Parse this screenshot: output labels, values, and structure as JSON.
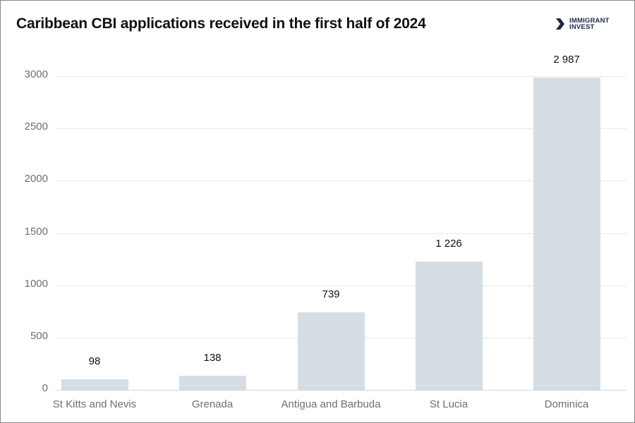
{
  "header": {
    "title": "Caribbean CBI applications received in the first half of 2024",
    "logo_line1": "IMMIGRANT",
    "logo_line2": "INVEST"
  },
  "colors": {
    "bar": "#d5dde5",
    "grid": "#e6e9ec",
    "title": "#111111",
    "axis_text": "#6f6f6f",
    "logo": "#1f2a44"
  },
  "chart_data": {
    "type": "bar",
    "title": "Caribbean CBI applications received in the first half of 2024",
    "xlabel": "",
    "ylabel": "",
    "categories": [
      "St Kitts and Nevis",
      "Grenada",
      "Antigua and Barbuda",
      "St Lucia",
      "Dominica"
    ],
    "values": [
      98,
      138,
      739,
      1226,
      2987
    ],
    "value_labels": [
      "98",
      "138",
      "739",
      "1 226",
      "2 987"
    ],
    "yticks": [
      0,
      500,
      1000,
      1500,
      2000,
      2500,
      3000
    ],
    "ytick_labels": [
      "0",
      "500",
      "1000",
      "1500",
      "2000",
      "2500",
      "3000"
    ],
    "ylim": [
      0,
      3000
    ],
    "grid": true,
    "legend": "none"
  }
}
